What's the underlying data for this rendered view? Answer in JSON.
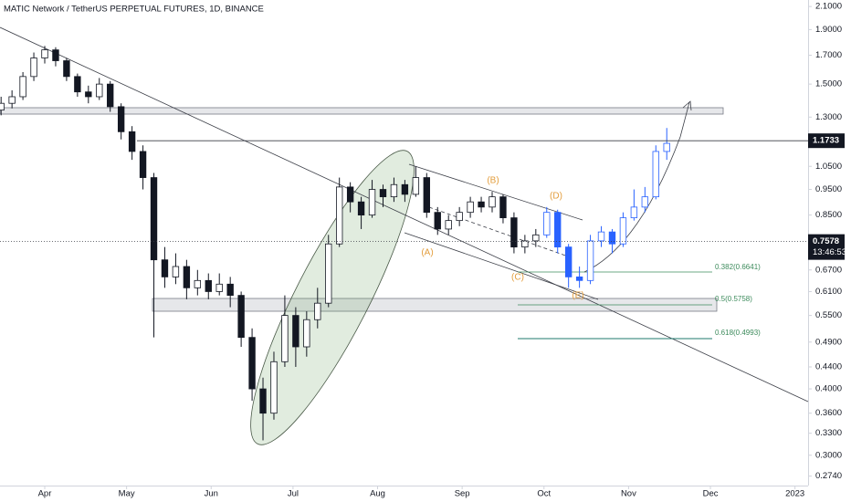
{
  "chart_data": {
    "type": "candlestick",
    "title": "MATIC Network / TetherUS PERPETUAL FUTURES, 1D, BINANCE",
    "log_scale": true,
    "xlim": [
      74.6,
      370.8
    ],
    "ylim": [
      0.263,
      2.16
    ],
    "xticks": [
      {
        "value": 91,
        "label": "Apr"
      },
      {
        "value": 121,
        "label": "May"
      },
      {
        "value": 152,
        "label": "Jun"
      },
      {
        "value": 182,
        "label": "Jul"
      },
      {
        "value": 213,
        "label": "Aug"
      },
      {
        "value": 244,
        "label": "Sep"
      },
      {
        "value": 274,
        "label": "Oct"
      },
      {
        "value": 305,
        "label": "Nov"
      },
      {
        "value": 335,
        "label": "Dec"
      },
      {
        "value": 366,
        "label": "2023"
      }
    ],
    "yticks": [
      {
        "value": 2.1,
        "label": "2.1000"
      },
      {
        "value": 1.9,
        "label": "1.9000"
      },
      {
        "value": 1.7,
        "label": "1.7000"
      },
      {
        "value": 1.5,
        "label": "1.5000"
      },
      {
        "value": 1.3,
        "label": "1.3000"
      },
      {
        "value": 1.05,
        "label": "1.0500"
      },
      {
        "value": 0.95,
        "label": "0.9500"
      },
      {
        "value": 0.85,
        "label": "0.8500"
      },
      {
        "value": 0.67,
        "label": "0.6700"
      },
      {
        "value": 0.61,
        "label": "0.6100"
      },
      {
        "value": 0.55,
        "label": "0.5500"
      },
      {
        "value": 0.49,
        "label": "0.4900"
      },
      {
        "value": 0.44,
        "label": "0.4400"
      },
      {
        "value": 0.4,
        "label": "0.4000"
      },
      {
        "value": 0.36,
        "label": "0.3600"
      },
      {
        "value": 0.33,
        "label": "0.3300"
      },
      {
        "value": 0.3,
        "label": "0.3000"
      },
      {
        "value": 0.274,
        "label": "0.2740"
      }
    ],
    "level": 1.1733,
    "last_price": {
      "value": 0.7578,
      "countdown": "13:46:53"
    },
    "wave_labels": [
      "(A)",
      "(B)",
      "(C)",
      "(D)",
      "(E)"
    ],
    "fib_labels": [
      "0.382(0.6641)",
      "0.5(0.5758)",
      "0.618(0.4993)"
    ],
    "series": [
      {
        "color": "#131722",
        "x": [
          75,
          79,
          83,
          87,
          91,
          95,
          99,
          103,
          107,
          111,
          115,
          119,
          123,
          127,
          131,
          135,
          139,
          143,
          147,
          151,
          155,
          159,
          163,
          167,
          171,
          175,
          179,
          183,
          187,
          191,
          195,
          199,
          203,
          207,
          211,
          215,
          219,
          223,
          227,
          231,
          235,
          239,
          243,
          247,
          251,
          255,
          259,
          263,
          267,
          271
        ],
        "open": [
          1.34,
          1.38,
          1.42,
          1.55,
          1.68,
          1.74,
          1.66,
          1.55,
          1.45,
          1.42,
          1.5,
          1.36,
          1.22,
          1.12,
          1.0,
          0.7,
          0.65,
          0.68,
          0.62,
          0.64,
          0.61,
          0.63,
          0.6,
          0.5,
          0.4,
          0.36,
          0.45,
          0.55,
          0.48,
          0.54,
          0.58,
          0.75,
          0.96,
          0.9,
          0.85,
          0.95,
          0.92,
          0.97,
          0.93,
          1.0,
          0.86,
          0.8,
          0.83,
          0.86,
          0.9,
          0.88,
          0.92,
          0.84,
          0.74,
          0.76
        ],
        "high": [
          1.42,
          1.46,
          1.58,
          1.72,
          1.77,
          1.76,
          1.68,
          1.57,
          1.49,
          1.54,
          1.52,
          1.38,
          1.25,
          1.15,
          1.02,
          0.74,
          0.72,
          0.7,
          0.67,
          0.66,
          0.66,
          0.65,
          0.61,
          0.52,
          0.42,
          0.47,
          0.6,
          0.57,
          0.56,
          0.62,
          0.78,
          1.0,
          0.98,
          0.92,
          0.99,
          0.97,
          1.0,
          0.99,
          1.05,
          1.02,
          0.88,
          0.85,
          0.88,
          0.92,
          0.92,
          0.94,
          0.93,
          0.86,
          0.78,
          0.8
        ],
        "low": [
          1.31,
          1.35,
          1.4,
          1.52,
          1.64,
          1.62,
          1.52,
          1.42,
          1.38,
          1.4,
          1.33,
          1.18,
          1.08,
          0.95,
          0.5,
          0.62,
          0.63,
          0.59,
          0.6,
          0.59,
          0.6,
          0.57,
          0.48,
          0.38,
          0.32,
          0.35,
          0.44,
          0.44,
          0.46,
          0.52,
          0.57,
          0.74,
          0.86,
          0.8,
          0.84,
          0.88,
          0.9,
          0.9,
          0.92,
          0.84,
          0.78,
          0.78,
          0.81,
          0.84,
          0.86,
          0.86,
          0.82,
          0.72,
          0.72,
          0.74
        ],
        "close": [
          1.38,
          1.42,
          1.55,
          1.68,
          1.74,
          1.66,
          1.55,
          1.45,
          1.42,
          1.5,
          1.36,
          1.22,
          1.12,
          1.0,
          0.7,
          0.65,
          0.68,
          0.62,
          0.64,
          0.61,
          0.63,
          0.6,
          0.5,
          0.4,
          0.36,
          0.45,
          0.55,
          0.48,
          0.54,
          0.58,
          0.75,
          0.96,
          0.9,
          0.85,
          0.95,
          0.92,
          0.97,
          0.93,
          1.0,
          0.86,
          0.8,
          0.83,
          0.86,
          0.9,
          0.88,
          0.92,
          0.84,
          0.74,
          0.76,
          0.78
        ]
      },
      {
        "color": "#2962ff",
        "x": [
          275,
          279,
          283,
          287,
          291,
          295,
          299,
          303,
          307,
          311,
          315,
          319
        ],
        "open": [
          0.78,
          0.86,
          0.74,
          0.65,
          0.64,
          0.76,
          0.79,
          0.75,
          0.84,
          0.88,
          0.92,
          1.12
        ],
        "high": [
          0.88,
          0.87,
          0.75,
          0.68,
          0.78,
          0.81,
          0.8,
          0.86,
          0.95,
          0.96,
          1.15,
          1.24
        ],
        "low": [
          0.77,
          0.72,
          0.62,
          0.62,
          0.63,
          0.74,
          0.72,
          0.74,
          0.83,
          0.86,
          0.91,
          1.08
        ],
        "close": [
          0.86,
          0.74,
          0.65,
          0.64,
          0.76,
          0.79,
          0.75,
          0.84,
          0.88,
          0.92,
          1.12,
          1.16
        ]
      }
    ]
  }
}
